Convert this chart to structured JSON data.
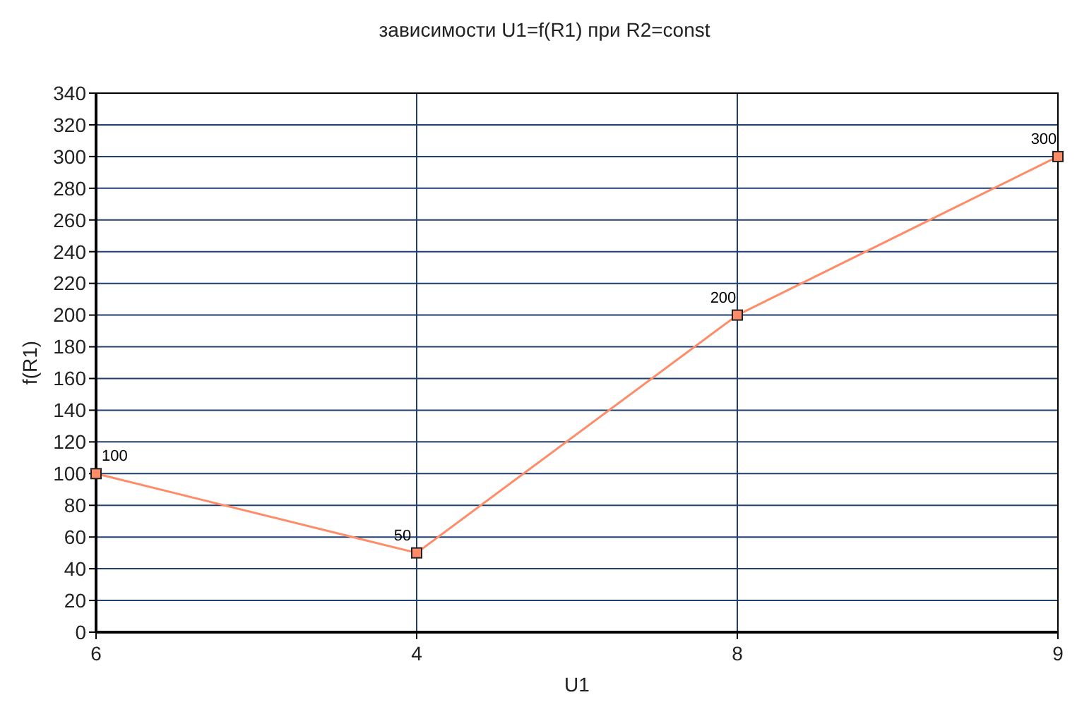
{
  "chart_data": {
    "type": "line",
    "title": "зависимости U1=f(R1) при R2=const",
    "xlabel": "U1",
    "ylabel": "f(R1)",
    "categories": [
      "6",
      "4",
      "8",
      "9"
    ],
    "series": [
      {
        "color": "#ff8c69",
        "values": [
          100,
          50,
          200,
          300
        ]
      }
    ],
    "ylim": [
      0,
      340
    ],
    "yticks": [
      0,
      20,
      40,
      60,
      80,
      100,
      120,
      140,
      160,
      180,
      200,
      220,
      240,
      260,
      280,
      300,
      320,
      340
    ],
    "grid": true,
    "marker": "square",
    "line_style": "solid",
    "data_labels": true
  }
}
